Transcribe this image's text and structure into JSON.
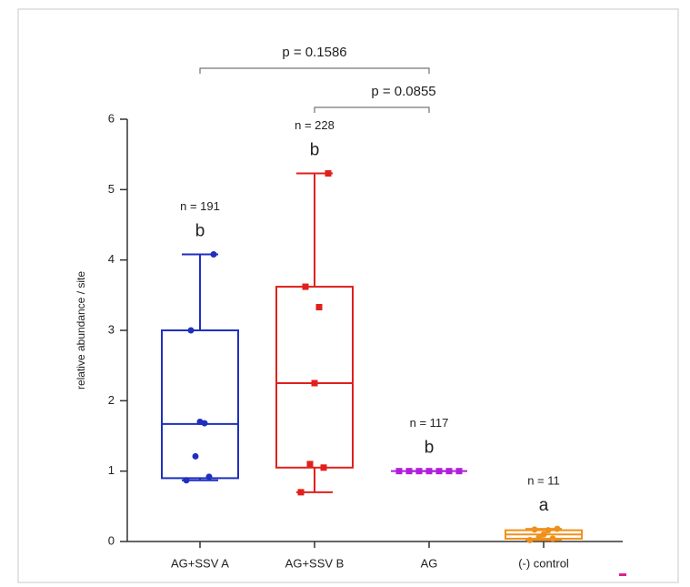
{
  "chart_data": {
    "type": "box",
    "ylabel": "relative abundance / site",
    "categories": [
      "AG+SSV A",
      "AG+SSV B",
      "AG",
      "(-) control"
    ],
    "colors": [
      "#1f2fbf",
      "#e0201c",
      "#b020d8",
      "#f0901c"
    ],
    "markers": [
      "circle",
      "square",
      "square",
      "circle"
    ],
    "boxes": [
      {
        "min": 0.87,
        "q1": 0.9,
        "median": 1.67,
        "q3": 3.0,
        "max": 4.08,
        "points": [
          4.08,
          3.0,
          1.68,
          1.7,
          1.21,
          0.92,
          0.87
        ]
      },
      {
        "min": 0.7,
        "q1": 1.05,
        "median": 2.25,
        "q3": 3.62,
        "max": 5.23,
        "points": [
          5.23,
          3.62,
          3.33,
          2.25,
          1.1,
          1.05,
          0.7
        ]
      },
      {
        "min": 1.0,
        "q1": 1.0,
        "median": 1.0,
        "q3": 1.0,
        "max": 1.0,
        "points": [
          1.0,
          1.0,
          1.0,
          1.0,
          1.0,
          1.0,
          1.0
        ]
      },
      {
        "min": 0.02,
        "q1": 0.04,
        "median": 0.1,
        "q3": 0.16,
        "max": 0.18,
        "points": [
          0.18,
          0.17,
          0.16,
          0.1,
          0.06,
          0.04,
          0.02
        ]
      }
    ],
    "n_labels": [
      "n = 191",
      "n = 228",
      "n = 117",
      "n = 11"
    ],
    "letters": [
      "b",
      "b",
      "b",
      "a"
    ],
    "comparisons": [
      {
        "label": "p = 0.1586",
        "from": 0,
        "to": 2
      },
      {
        "label": "p = 0.0855",
        "from": 1,
        "to": 2
      }
    ],
    "ylim": [
      0,
      6
    ],
    "yticks": [
      0,
      1,
      2,
      3,
      4,
      5,
      6
    ]
  }
}
